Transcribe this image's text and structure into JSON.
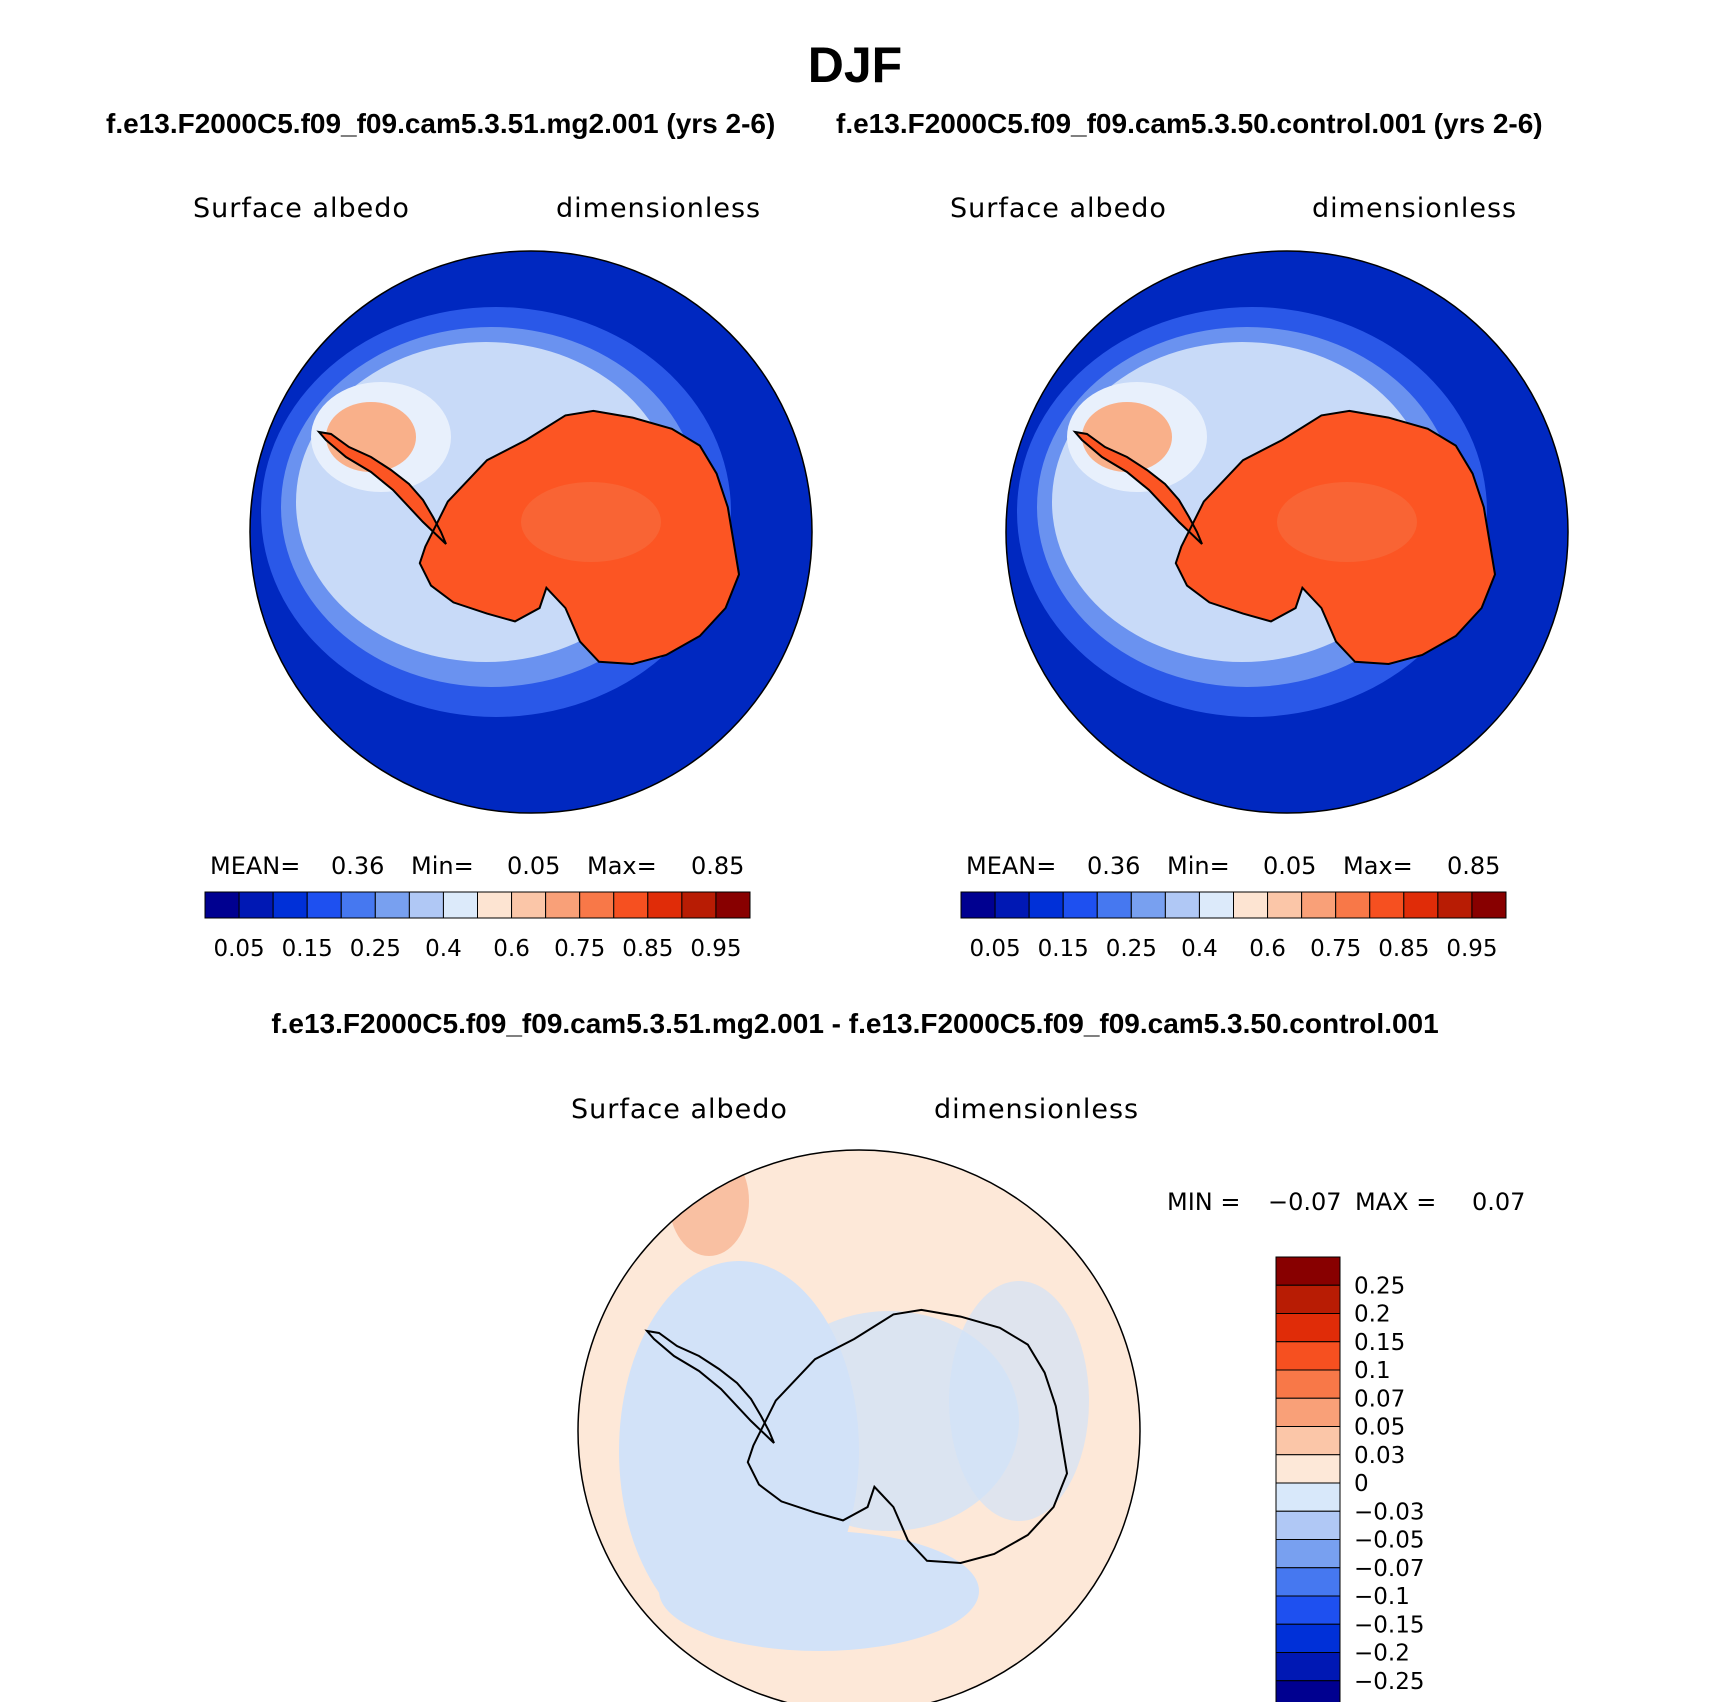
{
  "title": "DJF",
  "panels": [
    {
      "case_title": "f.e13.F2000C5.f09_f09.cam5.3.51.mg2.001 (yrs 2-6)",
      "variable": "Surface albedo",
      "units": "dimensionless",
      "stats": {
        "mean_label": "MEAN=",
        "mean": "0.36",
        "min_label": "Min=",
        "min": "0.05",
        "max_label": "Max=",
        "max": "0.85"
      }
    },
    {
      "case_title": "f.e13.F2000C5.f09_f09.cam5.3.50.control.001 (yrs 2-6)",
      "variable": "Surface albedo",
      "units": "dimensionless",
      "stats": {
        "mean_label": "MEAN=",
        "mean": "0.36",
        "min_label": "Min=",
        "min": "0.05",
        "max_label": "Max=",
        "max": "0.85"
      }
    }
  ],
  "colorbar": {
    "colors": [
      "#000090",
      "#0018B4",
      "#0030D8",
      "#1E50F0",
      "#4678F0",
      "#78A0F0",
      "#B0C8F5",
      "#DCEAFA",
      "#FDE4D2",
      "#FBC6A8",
      "#F9A078",
      "#F87848",
      "#F65020",
      "#E02C08",
      "#B81C04",
      "#880000"
    ],
    "labels": [
      "0.05",
      "0.15",
      "0.25",
      "0.4",
      "0.6",
      "0.75",
      "0.85",
      "0.95"
    ]
  },
  "difference": {
    "title": "f.e13.F2000C5.f09_f09.cam5.3.51.mg2.001 - f.e13.F2000C5.f09_f09.cam5.3.50.control.001",
    "variable": "Surface albedo",
    "units": "dimensionless",
    "min_label": "MIN =",
    "min": "−0.07",
    "max_label": "MAX =",
    "max": "0.07",
    "colorbar": {
      "colors": [
        "#880000",
        "#B81C04",
        "#E02C08",
        "#F65020",
        "#F87848",
        "#F9A078",
        "#FBC6A8",
        "#FDE8D8",
        "#D8E8FA",
        "#B0C8F5",
        "#78A0F0",
        "#4678F0",
        "#1E50F0",
        "#0030D8",
        "#0018B4",
        "#000090"
      ],
      "labels": [
        "0.25",
        "0.2",
        "0.15",
        "0.1",
        "0.07",
        "0.05",
        "0.03",
        "0",
        "−0.03",
        "−0.05",
        "−0.07",
        "−0.1",
        "−0.15",
        "−0.2",
        "−0.25"
      ]
    }
  },
  "map_palette": {
    "ocean": "#0028C0",
    "ice_edge_1": "#2A58E8",
    "ice_edge_2": "#6A92F0",
    "sea_ice": "#C8DAF8",
    "sea_ice_bright": "#E8F0FC",
    "ice_shelf": "#F9B08A",
    "land_ice": "#FC5523",
    "land_ice_light": "#F7784A",
    "diff_positive": "#FDE8D8",
    "diff_negative": "#D2E2F8",
    "diff_positive_strong": "#F9C0A2"
  }
}
